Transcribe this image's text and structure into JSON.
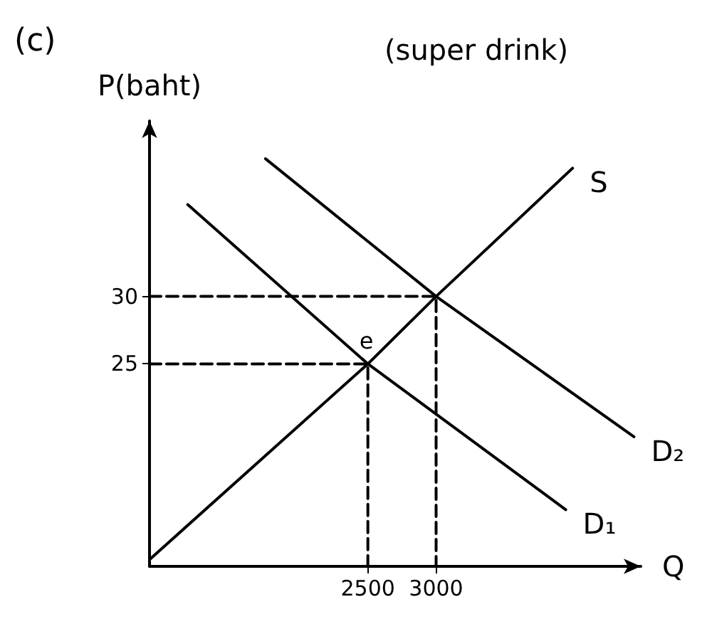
{
  "chart_data": {
    "type": "line",
    "title": "(super drink)",
    "xlabel": "Q",
    "ylabel": "P(baht)",
    "annotations": [
      "(c)",
      {
        "text": "e",
        "x": 2500,
        "y": 25
      }
    ],
    "xlim": [
      900,
      4500
    ],
    "ylim": [
      10,
      43
    ],
    "xticks": [
      2500,
      3000
    ],
    "yticks": [
      25,
      30
    ],
    "grid": false,
    "legend": false,
    "marker": "none",
    "series": [
      {
        "name": "S",
        "color": "#000000",
        "x": [
          900,
          2500,
          3000,
          4000
        ],
        "values": [
          10.5,
          25,
          30,
          39.5
        ]
      },
      {
        "name": "D₁",
        "color": "#000000",
        "x": [
          1180,
          2500,
          3950
        ],
        "values": [
          36.8,
          25,
          14.2
        ]
      },
      {
        "name": "D₂",
        "color": "#000000",
        "x": [
          1750,
          3000,
          4450
        ],
        "values": [
          40.2,
          30,
          19.6
        ]
      },
      {
        "color": "#000000",
        "line_style": "dashed",
        "x": [
          900,
          2500,
          2500
        ],
        "values": [
          25,
          25,
          10
        ]
      },
      {
        "color": "#000000",
        "line_style": "dashed",
        "x": [
          900,
          3000,
          3000
        ],
        "values": [
          30,
          30,
          10
        ]
      }
    ]
  }
}
